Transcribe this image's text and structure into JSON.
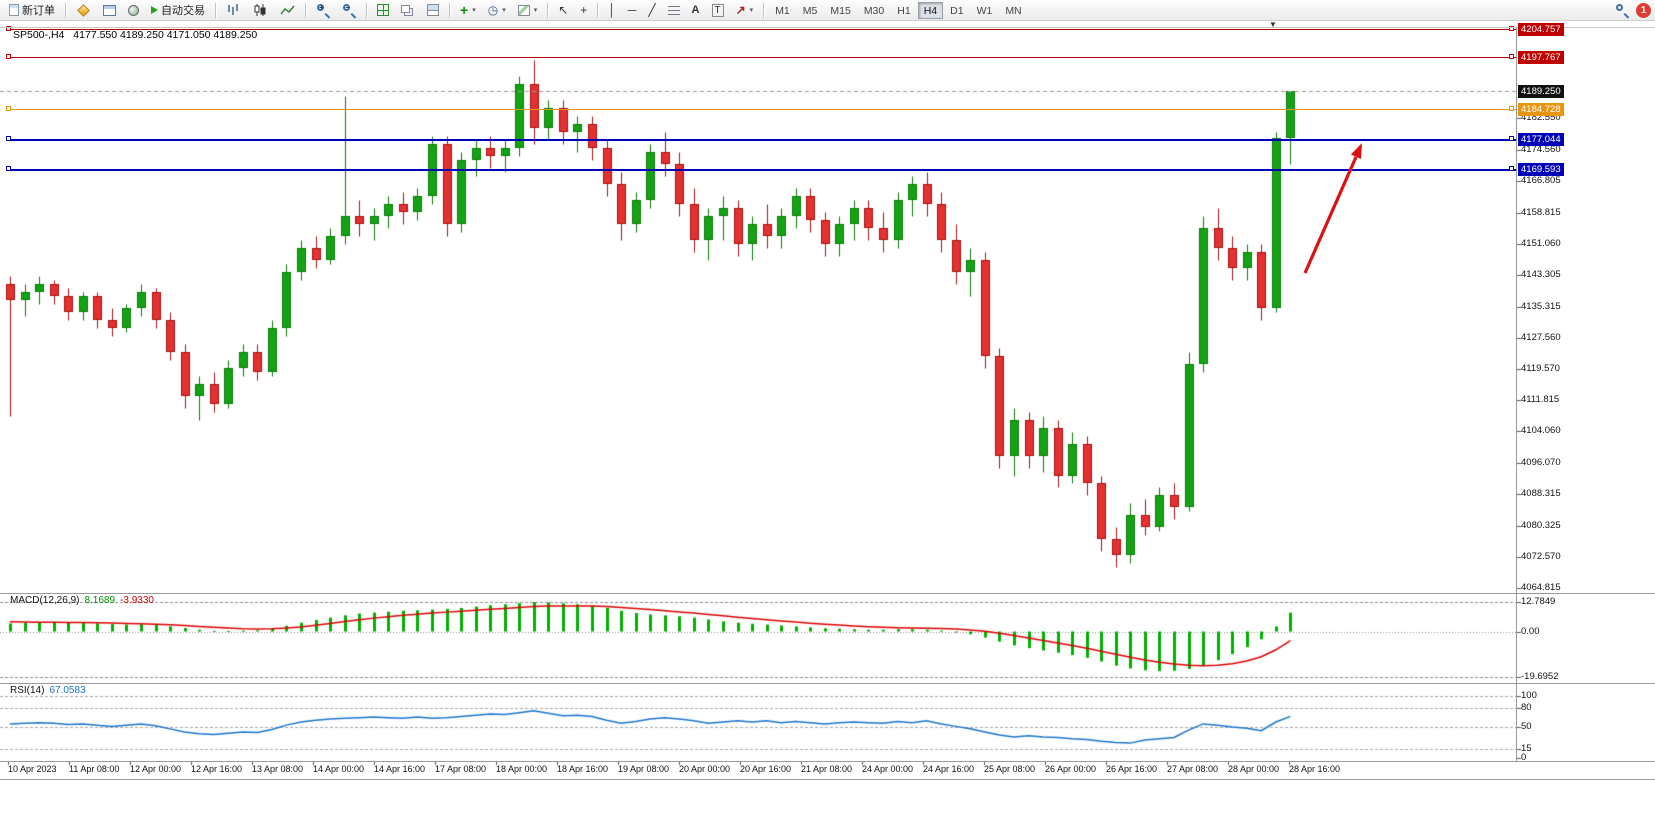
{
  "toolbar": {
    "new_order": "新订单",
    "autotrading": "自动交易",
    "timeframes": [
      "M1",
      "M5",
      "M15",
      "M30",
      "H1",
      "H4",
      "D1",
      "W1",
      "MN"
    ],
    "active_timeframe": "H4",
    "notification_count": "1"
  },
  "chart": {
    "symbol_period": "SP500-,H4",
    "ohlc": "4177.550 4189.250 4171.050 4189.250",
    "current_price": "4189.250",
    "price_axis": [
      "4182.550",
      "4174.560",
      "4166.805",
      "4158.815",
      "4151.060",
      "4143.305",
      "4135.315",
      "4127.560",
      "4119.570",
      "4111.815",
      "4104.060",
      "4096.070",
      "4088.315",
      "4080.325",
      "4072.570",
      "4064.815"
    ],
    "lines": [
      {
        "label": "4204.757",
        "value": 4204.757,
        "color": "#c00000",
        "width": 1
      },
      {
        "label": "4197.767",
        "value": 4197.767,
        "color": "#c00000",
        "width": 1
      },
      {
        "label": "4184.728",
        "value": 4184.728,
        "color": "#e8960f",
        "width": 1
      },
      {
        "label": "4177.044",
        "value": 4177.044,
        "color": "#0000b8",
        "width": 2
      },
      {
        "label": "4169.593",
        "value": 4169.593,
        "color": "#0000b8",
        "width": 2
      }
    ]
  },
  "chart_data": {
    "type": "candlestick",
    "symbol": "SP500-",
    "timeframe": "H4",
    "price_range": [
      4064.815,
      4204.757
    ],
    "grid": false,
    "colors": {
      "up_fill": "#15a315",
      "up_border": "#0a7a0a",
      "down_fill": "#e33030",
      "down_border": "#a81212",
      "macd_hist": "#00b000",
      "macd_signal": "#dd0000",
      "rsi": "#1874cd",
      "arrow": "#dd1111"
    },
    "x_labels": [
      "10 Apr 2023",
      "11 Apr 08:00",
      "12 Apr 00:00",
      "12 Apr 16:00",
      "13 Apr 08:00",
      "14 Apr 00:00",
      "14 Apr 16:00",
      "17 Apr 08:00",
      "18 Apr 00:00",
      "18 Apr 16:00",
      "19 Apr 08:00",
      "20 Apr 00:00",
      "20 Apr 16:00",
      "21 Apr 08:00",
      "24 Apr 00:00",
      "24 Apr 16:00",
      "25 Apr 08:00",
      "26 Apr 00:00",
      "26 Apr 16:00",
      "27 Apr 08:00",
      "28 Apr 00:00",
      "28 Apr 16:00"
    ],
    "candles": [
      [
        4141,
        4143,
        4108,
        4137
      ],
      [
        4137,
        4141,
        4133,
        4139
      ],
      [
        4139,
        4143,
        4136,
        4141
      ],
      [
        4141,
        4142,
        4136,
        4138
      ],
      [
        4138,
        4140,
        4132,
        4134
      ],
      [
        4134,
        4139,
        4132,
        4138
      ],
      [
        4138,
        4139,
        4130,
        4132
      ],
      [
        4132,
        4135,
        4128,
        4130
      ],
      [
        4130,
        4136,
        4129,
        4135
      ],
      [
        4135,
        4141,
        4133,
        4139
      ],
      [
        4139,
        4140,
        4130,
        4132
      ],
      [
        4132,
        4134,
        4122,
        4124
      ],
      [
        4124,
        4126,
        4110,
        4113
      ],
      [
        4113,
        4118,
        4107,
        4116
      ],
      [
        4116,
        4119,
        4109,
        4111
      ],
      [
        4111,
        4122,
        4110,
        4120
      ],
      [
        4120,
        4126,
        4118,
        4124
      ],
      [
        4124,
        4126,
        4117,
        4119
      ],
      [
        4119,
        4132,
        4118,
        4130
      ],
      [
        4130,
        4146,
        4128,
        4144
      ],
      [
        4144,
        4152,
        4142,
        4150
      ],
      [
        4150,
        4153,
        4145,
        4147
      ],
      [
        4147,
        4155,
        4146,
        4153
      ],
      [
        4153,
        4188,
        4151,
        4158
      ],
      [
        4158,
        4162,
        4153,
        4156
      ],
      [
        4156,
        4160,
        4152,
        4158
      ],
      [
        4158,
        4163,
        4155,
        4161
      ],
      [
        4161,
        4164,
        4156,
        4159
      ],
      [
        4159,
        4165,
        4157,
        4163
      ],
      [
        4163,
        4178,
        4161,
        4176
      ],
      [
        4176,
        4178,
        4153,
        4156
      ],
      [
        4156,
        4174,
        4154,
        4172
      ],
      [
        4172,
        4177,
        4168,
        4175
      ],
      [
        4175,
        4178,
        4170,
        4173
      ],
      [
        4173,
        4177,
        4169,
        4175
      ],
      [
        4175,
        4193,
        4173,
        4191
      ],
      [
        4191,
        4197,
        4176,
        4180
      ],
      [
        4180,
        4187,
        4177,
        4185
      ],
      [
        4185,
        4187,
        4176,
        4179
      ],
      [
        4179,
        4183,
        4174,
        4181
      ],
      [
        4181,
        4183,
        4172,
        4175
      ],
      [
        4175,
        4177,
        4163,
        4166
      ],
      [
        4166,
        4169,
        4152,
        4156
      ],
      [
        4156,
        4164,
        4154,
        4162
      ],
      [
        4162,
        4176,
        4160,
        4174
      ],
      [
        4174,
        4179,
        4168,
        4171
      ],
      [
        4171,
        4174,
        4158,
        4161
      ],
      [
        4161,
        4165,
        4149,
        4152
      ],
      [
        4152,
        4160,
        4147,
        4158
      ],
      [
        4158,
        4163,
        4152,
        4160
      ],
      [
        4160,
        4162,
        4148,
        4151
      ],
      [
        4151,
        4158,
        4147,
        4156
      ],
      [
        4156,
        4161,
        4150,
        4153
      ],
      [
        4153,
        4160,
        4150,
        4158
      ],
      [
        4158,
        4165,
        4155,
        4163
      ],
      [
        4163,
        4165,
        4154,
        4157
      ],
      [
        4157,
        4159,
        4148,
        4151
      ],
      [
        4151,
        4158,
        4148,
        4156
      ],
      [
        4156,
        4162,
        4152,
        4160
      ],
      [
        4160,
        4162,
        4152,
        4155
      ],
      [
        4155,
        4159,
        4149,
        4152
      ],
      [
        4152,
        4164,
        4150,
        4162
      ],
      [
        4162,
        4168,
        4158,
        4166
      ],
      [
        4166,
        4169,
        4158,
        4161
      ],
      [
        4161,
        4164,
        4149,
        4152
      ],
      [
        4152,
        4156,
        4141,
        4144
      ],
      [
        4144,
        4150,
        4138,
        4147
      ],
      [
        4147,
        4149,
        4120,
        4123
      ],
      [
        4123,
        4125,
        4095,
        4098
      ],
      [
        4098,
        4110,
        4093,
        4107
      ],
      [
        4107,
        4109,
        4095,
        4098
      ],
      [
        4098,
        4108,
        4094,
        4105
      ],
      [
        4105,
        4107,
        4090,
        4093
      ],
      [
        4093,
        4104,
        4091,
        4101
      ],
      [
        4101,
        4103,
        4088,
        4091
      ],
      [
        4091,
        4093,
        4074,
        4077
      ],
      [
        4077,
        4080,
        4070,
        4073
      ],
      [
        4073,
        4086,
        4071,
        4083
      ],
      [
        4083,
        4087,
        4078,
        4080
      ],
      [
        4080,
        4090,
        4079,
        4088
      ],
      [
        4088,
        4091,
        4082,
        4085
      ],
      [
        4085,
        4124,
        4084,
        4121
      ],
      [
        4121,
        4158,
        4119,
        4155
      ],
      [
        4155,
        4160,
        4147,
        4150
      ],
      [
        4150,
        4153,
        4142,
        4145
      ],
      [
        4145,
        4151,
        4142,
        4149
      ],
      [
        4149,
        4151,
        4132,
        4135
      ],
      [
        4135,
        4179,
        4134,
        4177.55
      ],
      [
        4177.55,
        4189.25,
        4171.05,
        4189.25
      ]
    ],
    "indicators": {
      "macd": {
        "label": "MACD(12,26,9)",
        "value_main": "8.1689",
        "value_signal": "-3.9330",
        "axis": [
          "12.7849",
          "0.00",
          "-19.6952"
        ],
        "axis_values": [
          12.7849,
          0,
          -19.6952
        ],
        "histogram": [
          3.5,
          3.8,
          4.0,
          4.2,
          4.0,
          3.8,
          3.5,
          3.2,
          3.0,
          3.2,
          2.8,
          2.2,
          1.5,
          0.8,
          0.3,
          0.2,
          0.4,
          0.5,
          1.2,
          2.5,
          3.8,
          5.0,
          6.0,
          7.0,
          7.8,
          8.2,
          8.6,
          9.0,
          9.2,
          9.5,
          9.8,
          10.2,
          10.8,
          11.4,
          11.8,
          12.3,
          12.78,
          12.6,
          12.2,
          11.8,
          11.2,
          10.2,
          9.0,
          8.0,
          7.4,
          7.0,
          6.6,
          6.0,
          5.2,
          4.4,
          3.8,
          3.4,
          3.0,
          2.6,
          2.2,
          1.8,
          1.4,
          1.2,
          1.0,
          0.8,
          0.8,
          1.0,
          1.0,
          0.8,
          0.4,
          -0.2,
          -1.2,
          -2.6,
          -4.4,
          -6.0,
          -7.2,
          -8.2,
          -9.2,
          -10.2,
          -11.4,
          -13.0,
          -14.8,
          -16.0,
          -16.8,
          -17.2,
          -17.0,
          -16.2,
          -14.6,
          -12.4,
          -9.8,
          -6.8,
          -3.4,
          2.2,
          8.1689
        ],
        "signal": [
          4.2,
          4.1,
          4.0,
          4.0,
          3.9,
          3.9,
          3.8,
          3.7,
          3.5,
          3.4,
          3.2,
          2.9,
          2.6,
          2.2,
          1.8,
          1.5,
          1.2,
          1.1,
          1.2,
          1.5,
          2.0,
          2.7,
          3.5,
          4.3,
          5.1,
          5.8,
          6.4,
          7.0,
          7.5,
          8.0,
          8.4,
          8.8,
          9.2,
          9.6,
          10.0,
          10.4,
          10.8,
          11.0,
          11.1,
          11.1,
          11.0,
          10.8,
          10.4,
          10.0,
          9.5,
          9.0,
          8.5,
          8.0,
          7.4,
          6.8,
          6.2,
          5.6,
          5.1,
          4.6,
          4.1,
          3.6,
          3.2,
          2.8,
          2.4,
          2.1,
          1.8,
          1.6,
          1.5,
          1.4,
          1.3,
          1.1,
          0.7,
          0.1,
          -0.7,
          -1.7,
          -2.8,
          -3.9,
          -5.0,
          -6.1,
          -7.2,
          -8.5,
          -9.8,
          -11.1,
          -12.3,
          -13.3,
          -14.1,
          -14.6,
          -14.8,
          -14.6,
          -14.0,
          -12.8,
          -10.9,
          -7.9,
          -3.933
        ]
      },
      "rsi": {
        "label": "RSI(14)",
        "value": "67.0583",
        "axis": [
          "100",
          "80",
          "50",
          "15",
          "0"
        ],
        "axis_values": [
          100,
          80,
          50,
          15,
          0
        ],
        "grid_levels": [
          100,
          80,
          50,
          15
        ],
        "values": [
          55,
          56,
          57,
          56,
          54,
          55,
          53,
          51,
          53,
          55,
          52,
          47,
          42,
          39,
          38,
          40,
          42,
          41,
          46,
          53,
          58,
          61,
          63,
          64,
          65,
          66,
          65,
          64,
          66,
          64,
          65,
          67,
          69,
          71,
          70,
          73,
          76,
          72,
          68,
          69,
          67,
          61,
          56,
          59,
          63,
          65,
          63,
          60,
          56,
          58,
          60,
          58,
          60,
          57,
          59,
          57,
          55,
          57,
          58,
          57,
          56,
          59,
          57,
          60,
          55,
          51,
          47,
          42,
          37,
          34,
          36,
          34,
          33,
          31,
          30,
          27,
          25,
          24,
          29,
          31,
          33,
          45,
          55,
          53,
          50,
          48,
          44,
          58,
          67.0583
        ]
      }
    }
  }
}
